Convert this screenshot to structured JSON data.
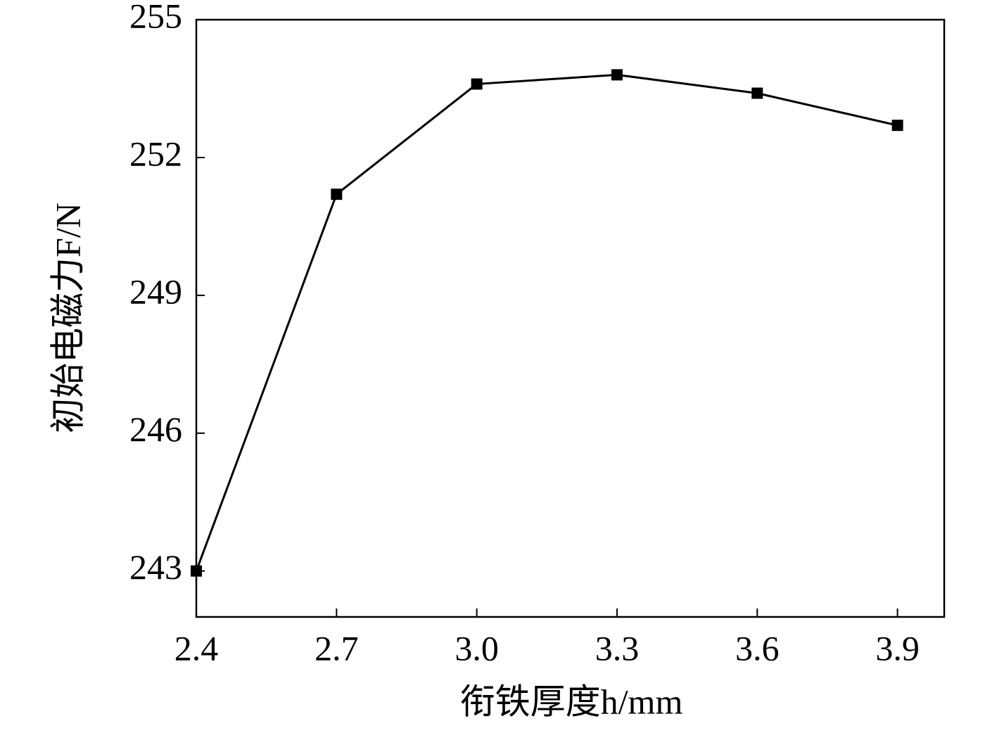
{
  "chart_data": {
    "type": "line",
    "x_label": "衔铁厚度h/mm",
    "y_label": "初始电磁力F/N",
    "x": [
      2.4,
      2.7,
      3.0,
      3.3,
      3.6,
      3.9
    ],
    "series": [
      {
        "color": "#000000",
        "values": [
          243.0,
          251.2,
          253.6,
          253.8,
          253.4,
          252.7
        ]
      }
    ],
    "xlim": [
      2.4,
      4.0
    ],
    "ylim": [
      242,
      255
    ],
    "xticks": [
      2.4,
      2.7,
      {
        "value": 3,
        "label": "3.0"
      },
      3.3,
      3.6,
      3.9
    ],
    "yticks": [
      243,
      246,
      249,
      252,
      255
    ]
  }
}
